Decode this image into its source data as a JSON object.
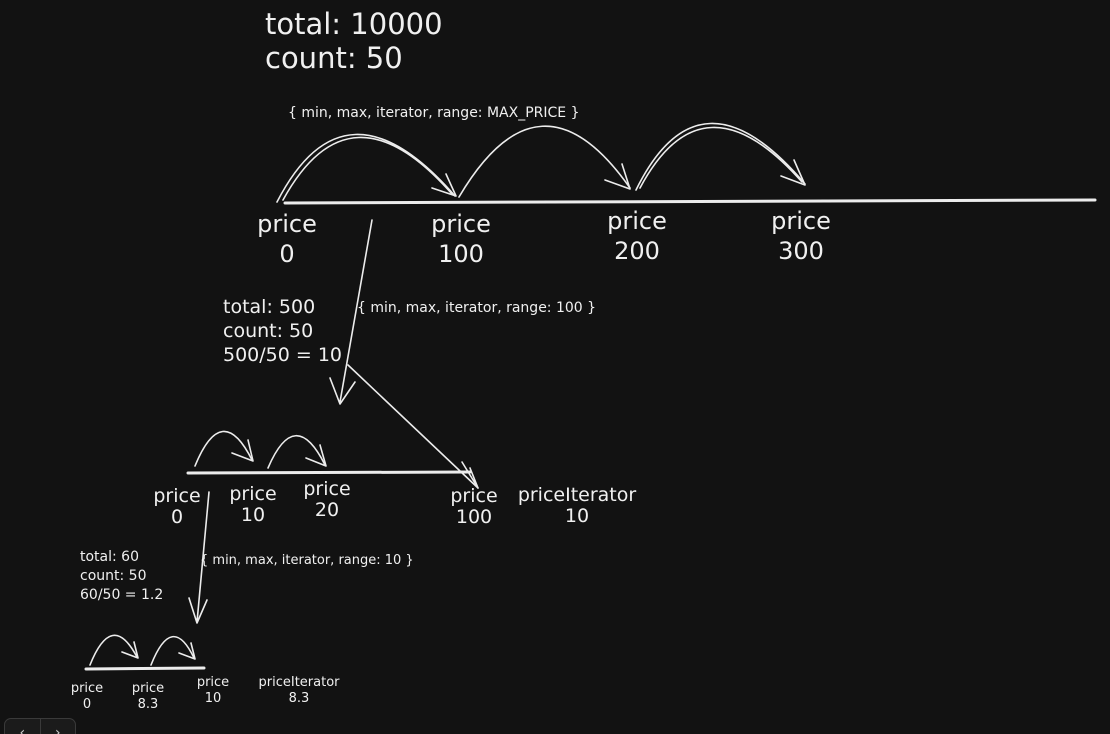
{
  "level0": {
    "total": "total: 10000",
    "count": "count: 50",
    "note": "{ min, max, iterator, range: MAX_PRICE }",
    "ticks": [
      {
        "label": "price",
        "value": "0"
      },
      {
        "label": "price",
        "value": "100"
      },
      {
        "label": "price",
        "value": "200"
      },
      {
        "label": "price",
        "value": "300"
      }
    ]
  },
  "level1": {
    "total": "total: 500",
    "count": "count: 50",
    "ratio": "500/50 = 10",
    "note": "{ min, max, iterator, range: 100 }",
    "ticks": [
      {
        "label": "price",
        "value": "0"
      },
      {
        "label": "price",
        "value": "10"
      },
      {
        "label": "price",
        "value": "20"
      },
      {
        "label": "price",
        "value": "100"
      }
    ],
    "iterator": {
      "label": "priceIterator",
      "value": "10"
    }
  },
  "level2": {
    "total": "total: 60",
    "count": "count: 50",
    "ratio": "60/50 = 1.2",
    "note": "{ min, max, iterator, range: 10 }",
    "ticks": [
      {
        "label": "price",
        "value": "0"
      },
      {
        "label": "price",
        "value": "8.3"
      },
      {
        "label": "price",
        "value": "10"
      }
    ],
    "iterator": {
      "label": "priceIterator",
      "value": "8.3"
    }
  },
  "nav": {
    "prev": "‹",
    "next": "›"
  }
}
